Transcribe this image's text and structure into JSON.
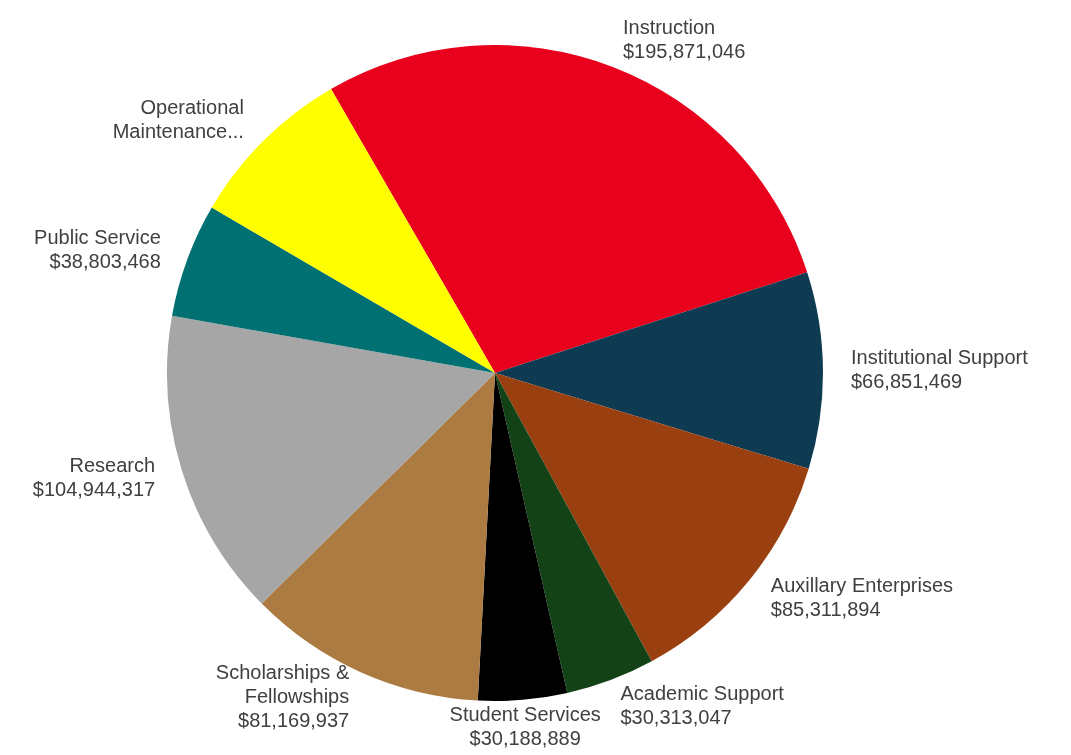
{
  "chart_data": {
    "type": "pie",
    "categories": [
      "Instruction",
      "Institutional Support",
      "Auxillary Enterprises",
      "Academic Support",
      "Student Services",
      "Scholarships & Fellowships",
      "Research",
      "Public Service",
      "Operational Maintenance..."
    ],
    "values": [
      195871046,
      66851469,
      85311894,
      30313047,
      30188889,
      81169937,
      104944317,
      38803468,
      57000000
    ],
    "value_labels": [
      "$195,871,046",
      "$66,851,469",
      "$85,311,894",
      "$30,313,047",
      "$30,188,889",
      "$81,169,937",
      "$104,944,317",
      "$38,803,468",
      null
    ],
    "colors": [
      "#e8001c",
      "#0e3a52",
      "#9a4010",
      "#124216",
      "#000000",
      "#ab7b42",
      "#a6a6a6",
      "#007073",
      "#ffff00"
    ],
    "legend": false
  }
}
